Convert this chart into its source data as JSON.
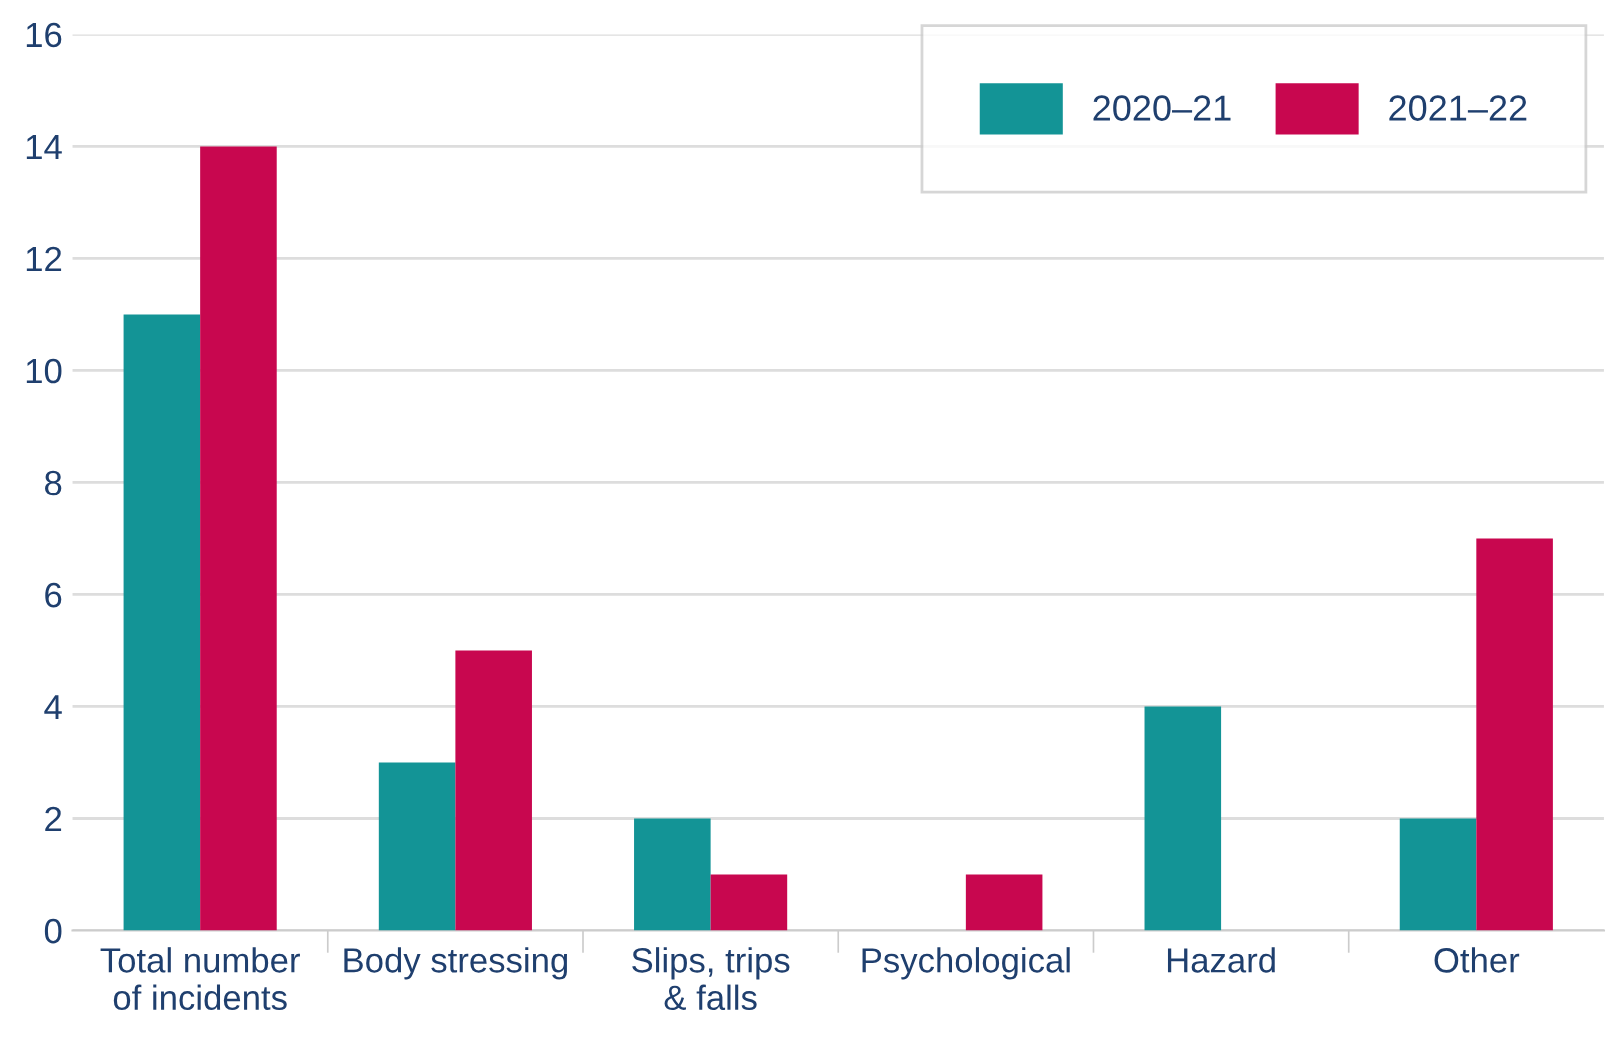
{
  "chart_data": {
    "type": "bar",
    "categories": [
      "Total number\nof incidents",
      "Body stressing",
      "Slips, trips\n& falls",
      "Psychological",
      "Hazard",
      "Other"
    ],
    "series": [
      {
        "name": "2020–21",
        "color": "#139496",
        "values": [
          11,
          3,
          2,
          0,
          4,
          2
        ]
      },
      {
        "name": "2021–22",
        "color": "#c8074f",
        "values": [
          14,
          5,
          1,
          1,
          0,
          7
        ]
      }
    ],
    "ylim": [
      0,
      16
    ],
    "yticks": [
      0,
      2,
      4,
      6,
      8,
      10,
      12,
      14,
      16
    ],
    "grid": "y",
    "legend": "top right"
  }
}
